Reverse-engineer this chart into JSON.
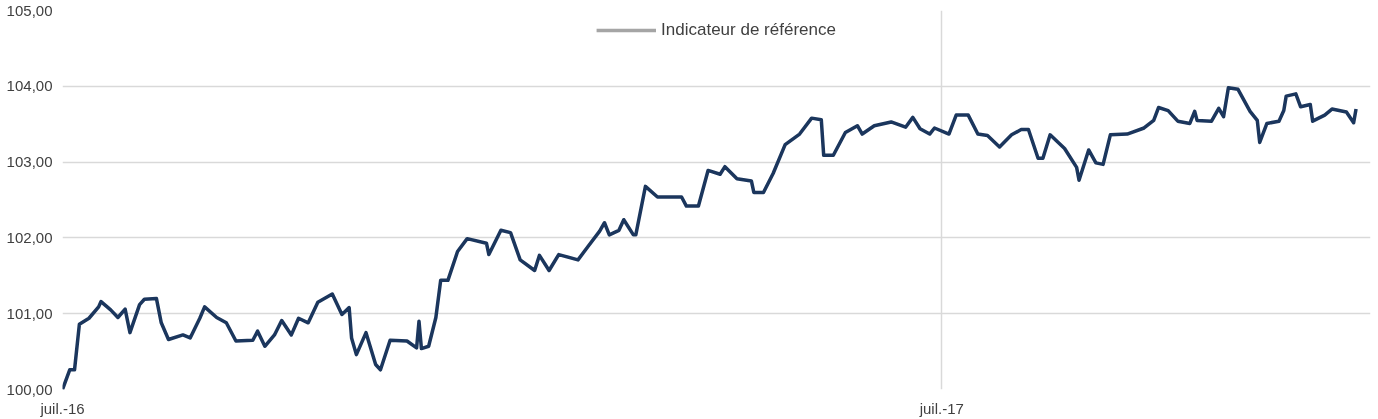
{
  "chart_data": {
    "type": "line",
    "xlim": [
      "2016-07-01",
      "2017-12-26"
    ],
    "xticks": [
      {
        "value": "2016-07-01",
        "label": "juil.-16"
      },
      {
        "value": "2017-07-01",
        "label": "juil.-17"
      }
    ],
    "ylim": [
      100,
      105
    ],
    "yticks": [
      {
        "value": 100,
        "label": "100,00"
      },
      {
        "value": 101,
        "label": "101,00"
      },
      {
        "value": 102,
        "label": "102,00"
      },
      {
        "value": 103,
        "label": "103,00"
      },
      {
        "value": 104,
        "label": "104,00"
      },
      {
        "value": 105,
        "label": "105,00"
      }
    ],
    "grid": true,
    "legend": "top",
    "marker": "none",
    "line_style": "solid",
    "series": [
      {
        "color": "#1b365d",
        "x": [
          "2016-07-01",
          "2016-07-04",
          "2016-07-06",
          "2016-07-08",
          "2016-07-12",
          "2016-07-16",
          "2016-07-17",
          "2016-07-21",
          "2016-07-24",
          "2016-07-27",
          "2016-07-29",
          "2016-08-02",
          "2016-08-04",
          "2016-08-09",
          "2016-08-11",
          "2016-08-14",
          "2016-08-20",
          "2016-08-23",
          "2016-08-27",
          "2016-08-29",
          "2016-09-03",
          "2016-09-07",
          "2016-09-11",
          "2016-09-18",
          "2016-09-20",
          "2016-09-23",
          "2016-09-27",
          "2016-09-30",
          "2016-10-04",
          "2016-10-07",
          "2016-10-11",
          "2016-10-15",
          "2016-10-21",
          "2016-10-25",
          "2016-10-28",
          "2016-10-29",
          "2016-10-31",
          "2016-11-04",
          "2016-11-08",
          "2016-11-10",
          "2016-11-14",
          "2016-11-21",
          "2016-11-25",
          "2016-11-26",
          "2016-11-27",
          "2016-11-30",
          "2016-12-03",
          "2016-12-05",
          "2016-12-08",
          "2016-12-12",
          "2016-12-16",
          "2016-12-24",
          "2016-12-25",
          "2016-12-30",
          "2017-01-03",
          "2017-01-07",
          "2017-01-13",
          "2017-01-15",
          "2017-01-19",
          "2017-01-23",
          "2017-01-31",
          "2017-02-04",
          "2017-02-09",
          "2017-02-11",
          "2017-02-13",
          "2017-02-17",
          "2017-02-19",
          "2017-02-23",
          "2017-02-24",
          "2017-02-28",
          "2017-03-05",
          "2017-03-11",
          "2017-03-15",
          "2017-03-17",
          "2017-03-22",
          "2017-03-26",
          "2017-03-31",
          "2017-04-02",
          "2017-04-07",
          "2017-04-13",
          "2017-04-14",
          "2017-04-18",
          "2017-04-22",
          "2017-04-27",
          "2017-05-03",
          "2017-05-08",
          "2017-05-12",
          "2017-05-13",
          "2017-05-17",
          "2017-05-22",
          "2017-05-27",
          "2017-05-29",
          "2017-06-03",
          "2017-06-10",
          "2017-06-16",
          "2017-06-19",
          "2017-06-22",
          "2017-06-26",
          "2017-06-28",
          "2017-07-04",
          "2017-07-07",
          "2017-07-12",
          "2017-07-16",
          "2017-07-20",
          "2017-07-25",
          "2017-07-30",
          "2017-08-03",
          "2017-08-06",
          "2017-08-10",
          "2017-08-12",
          "2017-08-15",
          "2017-08-21",
          "2017-08-26",
          "2017-08-27",
          "2017-08-31",
          "2017-09-03",
          "2017-09-06",
          "2017-09-09",
          "2017-09-16",
          "2017-09-23",
          "2017-09-27",
          "2017-09-29",
          "2017-10-03",
          "2017-10-07",
          "2017-10-12",
          "2017-10-14",
          "2017-10-15",
          "2017-10-21",
          "2017-10-24",
          "2017-10-26",
          "2017-10-28",
          "2017-11-01",
          "2017-11-06",
          "2017-11-09",
          "2017-11-10",
          "2017-11-13",
          "2017-11-18",
          "2017-11-20",
          "2017-11-21",
          "2017-11-25",
          "2017-11-27",
          "2017-12-01",
          "2017-12-02",
          "2017-12-07",
          "2017-12-10",
          "2017-12-16",
          "2017-12-19",
          "2017-12-20"
        ],
        "values": [
          100.0,
          100.26,
          100.26,
          100.86,
          100.94,
          101.09,
          101.16,
          101.05,
          100.95,
          101.06,
          100.75,
          101.12,
          101.19,
          101.2,
          100.88,
          100.66,
          100.72,
          100.68,
          100.94,
          101.09,
          100.95,
          100.88,
          100.64,
          100.65,
          100.77,
          100.57,
          100.72,
          100.91,
          100.72,
          100.94,
          100.88,
          101.15,
          101.26,
          100.99,
          101.08,
          100.68,
          100.46,
          100.75,
          100.33,
          100.26,
          100.65,
          100.64,
          100.55,
          100.9,
          100.54,
          100.57,
          100.95,
          101.44,
          101.44,
          101.82,
          101.99,
          101.93,
          101.78,
          102.1,
          102.07,
          101.71,
          101.57,
          101.77,
          101.57,
          101.78,
          101.71,
          101.88,
          102.09,
          102.2,
          102.04,
          102.1,
          102.24,
          102.04,
          102.04,
          102.68,
          102.54,
          102.54,
          102.54,
          102.42,
          102.42,
          102.89,
          102.84,
          102.94,
          102.78,
          102.75,
          102.6,
          102.6,
          102.85,
          103.23,
          103.37,
          103.58,
          103.56,
          103.09,
          103.09,
          103.39,
          103.48,
          103.37,
          103.48,
          103.53,
          103.46,
          103.59,
          103.44,
          103.37,
          103.45,
          103.37,
          103.62,
          103.62,
          103.37,
          103.35,
          103.2,
          103.36,
          103.43,
          103.43,
          103.05,
          103.05,
          103.36,
          103.18,
          102.93,
          102.76,
          103.16,
          102.99,
          102.97,
          103.36,
          103.37,
          103.45,
          103.55,
          103.72,
          103.68,
          103.54,
          103.51,
          103.67,
          103.55,
          103.54,
          103.71,
          103.6,
          103.98,
          103.96,
          103.67,
          103.55,
          103.26,
          103.51,
          103.54,
          103.68,
          103.87,
          103.9,
          103.73,
          103.76,
          103.54,
          103.62,
          103.7,
          103.66,
          103.52,
          103.7
        ]
      },
      {
        "name": "Indicateur de référence",
        "color": "#a5a5a5"
      }
    ]
  }
}
